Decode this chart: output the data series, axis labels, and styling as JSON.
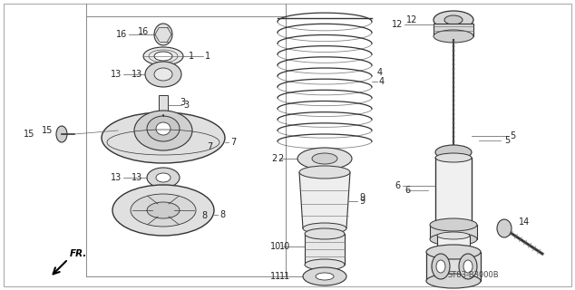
{
  "bg_color": "#ffffff",
  "line_color": "#333333",
  "fig_width": 6.34,
  "fig_height": 3.2,
  "dpi": 100,
  "reference_code": "ST83-B3000B",
  "direction_label": "FR."
}
